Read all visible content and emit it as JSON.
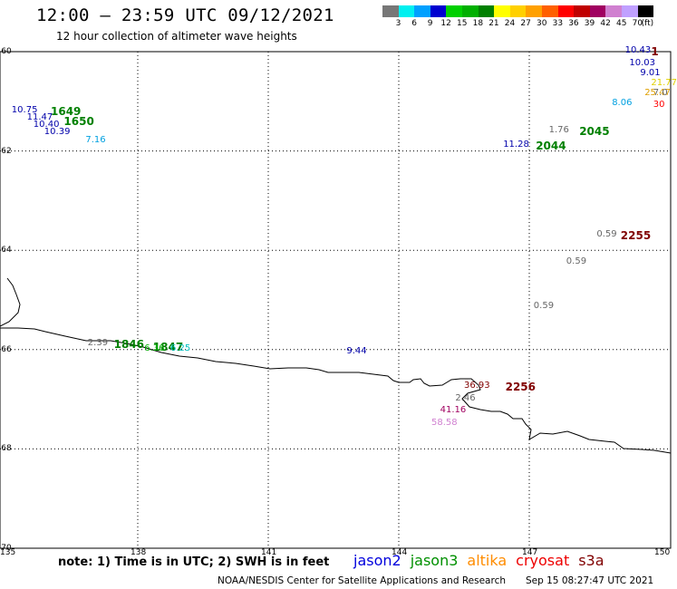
{
  "title": "12:00 – 23:59 UTC 09/12/2021",
  "subtitle": "12 hour collection of altimeter wave heights",
  "colorbar": {
    "colors": [
      "#777777",
      "#00f0f0",
      "#00a0ff",
      "#0000d0",
      "#00d000",
      "#00b000",
      "#008000",
      "#ffff00",
      "#ffd000",
      "#ffa000",
      "#ff6000",
      "#ff0000",
      "#c00000",
      "#a00060",
      "#d080d0",
      "#c0a0ff",
      "#000000"
    ],
    "ticks": [
      "3",
      "6",
      "9",
      "12",
      "15",
      "18",
      "21",
      "24",
      "27",
      "30",
      "33",
      "36",
      "39",
      "42",
      "45",
      "70"
    ],
    "unit": "(ft)"
  },
  "axes": {
    "lat_labels": [
      "-60",
      "-62",
      "-64",
      "-66",
      "-68",
      "-70"
    ],
    "lon_labels": [
      "135",
      "138",
      "141",
      "144",
      "147",
      "150"
    ]
  },
  "markers": [
    {
      "id": "t1649",
      "text": "1649",
      "kind": "time",
      "color": "#008000",
      "lon": 136.0,
      "lat": -61.2
    },
    {
      "id": "t1650",
      "text": "1650",
      "kind": "time",
      "color": "#008000",
      "lon": 136.3,
      "lat": -61.4
    },
    {
      "id": "v1",
      "text": "10.75",
      "kind": "val",
      "color": "#0000aa",
      "lon": 135.1,
      "lat": -61.2
    },
    {
      "id": "v2",
      "text": "11.47",
      "kind": "val",
      "color": "#0000aa",
      "lon": 135.45,
      "lat": -61.35
    },
    {
      "id": "v3",
      "text": "10.40",
      "kind": "val",
      "color": "#0000aa",
      "lon": 135.6,
      "lat": -61.5
    },
    {
      "id": "v4",
      "text": "10.39",
      "kind": "val",
      "color": "#0000aa",
      "lon": 135.85,
      "lat": -61.65
    },
    {
      "id": "v5",
      "text": "7.16",
      "kind": "val",
      "color": "#00a0e0",
      "lon": 136.8,
      "lat": -61.8
    },
    {
      "id": "t2044",
      "text": "2044",
      "kind": "time",
      "color": "#008000",
      "lon": 147.15,
      "lat": -61.9
    },
    {
      "id": "t2045",
      "text": "2045",
      "kind": "time",
      "color": "#008000",
      "lon": 148.15,
      "lat": -61.6
    },
    {
      "id": "v6",
      "text": "11.28",
      "kind": "val",
      "color": "#0000aa",
      "lon": 146.4,
      "lat": -61.9
    },
    {
      "id": "v7",
      "text": "1.76",
      "kind": "val",
      "color": "#666666",
      "lon": 147.45,
      "lat": -61.6
    },
    {
      "id": "t1",
      "text": "1",
      "kind": "time",
      "color": "#800000",
      "lon": 149.8,
      "lat": -60.0
    },
    {
      "id": "v8",
      "text": "10.43",
      "kind": "val",
      "color": "#0000aa",
      "lon": 149.2,
      "lat": -60.0
    },
    {
      "id": "v9",
      "text": "10.03",
      "kind": "val",
      "color": "#0000aa",
      "lon": 149.3,
      "lat": -60.25
    },
    {
      "id": "v10",
      "text": "9.01",
      "kind": "val",
      "color": "#0000aa",
      "lon": 149.55,
      "lat": -60.45
    },
    {
      "id": "v11",
      "text": "21.77",
      "kind": "val",
      "color": "#e0d000",
      "lon": 149.8,
      "lat": -60.65
    },
    {
      "id": "v12",
      "text": "25.47",
      "kind": "val",
      "color": "#e0a000",
      "lon": 149.65,
      "lat": -60.85
    },
    {
      "id": "v13",
      "text": "7.0",
      "kind": "val",
      "color": "#666666",
      "lon": 149.85,
      "lat": -60.85
    },
    {
      "id": "v14",
      "text": "8.06",
      "kind": "val",
      "color": "#00a0e0",
      "lon": 148.9,
      "lat": -61.05
    },
    {
      "id": "v15",
      "text": "30",
      "kind": "val",
      "color": "#ff0000",
      "lon": 149.85,
      "lat": -61.1
    },
    {
      "id": "t2255",
      "text": "2255",
      "kind": "time",
      "color": "#800000",
      "lon": 149.1,
      "lat": -63.7
    },
    {
      "id": "v16",
      "text": "0.59",
      "kind": "val",
      "color": "#666666",
      "lon": 148.55,
      "lat": -63.7
    },
    {
      "id": "v17",
      "text": "0.59",
      "kind": "val",
      "color": "#666666",
      "lon": 147.85,
      "lat": -64.25
    },
    {
      "id": "v18",
      "text": "0.59",
      "kind": "val",
      "color": "#666666",
      "lon": 147.1,
      "lat": -65.15
    },
    {
      "id": "t1846",
      "text": "1846",
      "kind": "time",
      "color": "#008000",
      "lon": 137.45,
      "lat": -65.9
    },
    {
      "id": "t1847",
      "text": "1847",
      "kind": "time",
      "color": "#008000",
      "lon": 138.35,
      "lat": -65.95
    },
    {
      "id": "v19",
      "text": "2.39",
      "kind": "val",
      "color": "#666666",
      "lon": 136.85,
      "lat": -65.9
    },
    {
      "id": "v20",
      "text": "6.36",
      "kind": "val",
      "color": "#00b000",
      "lon": 138.15,
      "lat": -66.0
    },
    {
      "id": "v21",
      "text": "6.25",
      "kind": "val",
      "color": "#00c0c0",
      "lon": 138.75,
      "lat": -66.0
    },
    {
      "id": "v22",
      "text": "9.44",
      "kind": "val",
      "color": "#0000aa",
      "lon": 142.8,
      "lat": -66.05
    },
    {
      "id": "t2256",
      "text": "2256",
      "kind": "time",
      "color": "#800000",
      "lon": 146.45,
      "lat": -66.75
    },
    {
      "id": "v23",
      "text": "36.93",
      "kind": "val",
      "color": "#800000",
      "lon": 145.5,
      "lat": -66.75
    },
    {
      "id": "v24",
      "text": "2.46",
      "kind": "val",
      "color": "#666666",
      "lon": 145.3,
      "lat": -67.0
    },
    {
      "id": "v25",
      "text": "41.16",
      "kind": "val",
      "color": "#a00060",
      "lon": 144.95,
      "lat": -67.25
    },
    {
      "id": "v26",
      "text": "58.58",
      "kind": "val",
      "color": "#d080d0",
      "lon": 144.75,
      "lat": -67.5
    }
  ],
  "note": "note:  1) Time is in UTC;  2) SWH is in feet",
  "legend": [
    {
      "text": "jason2",
      "color": "#0000dd"
    },
    {
      "text": "jason3",
      "color": "#009000"
    },
    {
      "text": "altika",
      "color": "#ff8c00"
    },
    {
      "text": "cryosat",
      "color": "#ee0000"
    },
    {
      "text": "s3a",
      "color": "#800000"
    }
  ],
  "credit": "NOAA/NESDIS Center for Satellite Applications and Research",
  "credit_time": "Sep 15 08:27:47 UTC 2021"
}
